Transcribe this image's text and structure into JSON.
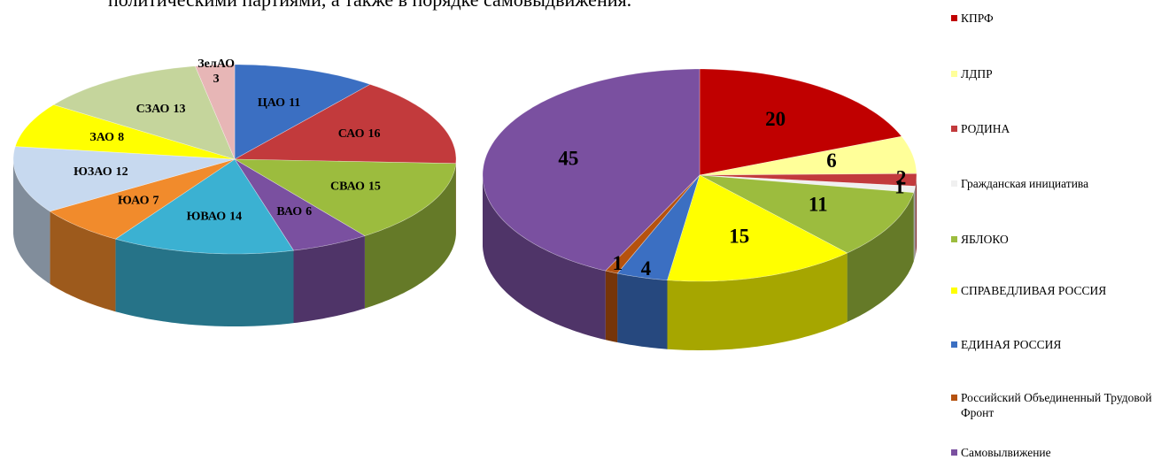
{
  "text": "политическими партиями, а также в порядке самовыдвижения.",
  "chart_data": [
    {
      "type": "pie",
      "categories": [
        "ЦАО",
        "САО",
        "СВАО",
        "ВАО",
        "ЮВАО",
        "ЮАО",
        "ЮЗАО",
        "ЗАО",
        "СЗАО",
        "ЗелАО"
      ],
      "values": [
        11,
        16,
        15,
        6,
        14,
        7,
        12,
        8,
        13,
        3
      ],
      "colors": [
        "#3b6fc2",
        "#c23a3c",
        "#9cbc3e",
        "#7a50a0",
        "#3bb1d2",
        "#f18b2c",
        "#c7d9ef",
        "#ffff00",
        "#c5d59c",
        "#e7b6b6"
      ]
    },
    {
      "type": "pie",
      "categories": [
        "КПРФ",
        "ЛДПР",
        "РОДИНА",
        "Гражданская инициатива",
        "ЯБЛОКО",
        "СПРАВЕДЛИВАЯ РОССИЯ",
        "ЕДИНАЯ РОССИЯ",
        "Российский Объединенный Трудовой Фронт",
        "Самовылвижение"
      ],
      "values": [
        20,
        6,
        2,
        1,
        11,
        15,
        4,
        1,
        45
      ],
      "colors": [
        "#c00000",
        "#ffff99",
        "#c23a3c",
        "#f0f0f0",
        "#9cbc3e",
        "#ffff00",
        "#3b6fc2",
        "#b5520f",
        "#7a50a0"
      ],
      "legend": "right"
    }
  ]
}
